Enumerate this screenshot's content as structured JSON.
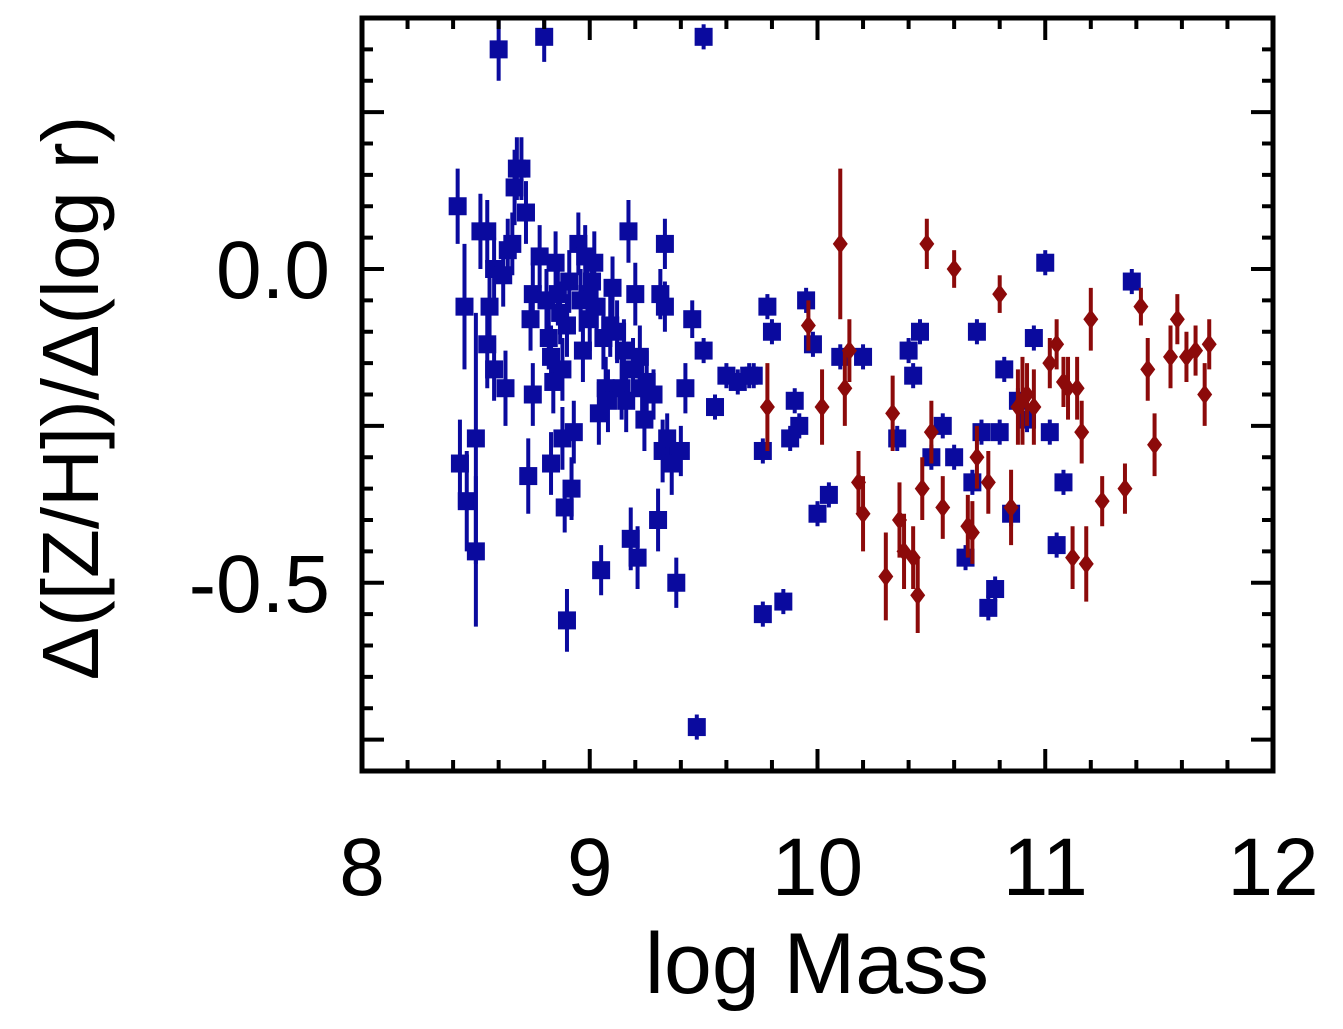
{
  "chart_data": {
    "type": "scatter",
    "title": "",
    "xlabel": "log Mass",
    "ylabel": "Δ([Z/H])/Δ(log r)",
    "xlim": [
      8,
      12
    ],
    "ylim": [
      -0.8,
      0.4
    ],
    "xticks": [
      8,
      9,
      10,
      11,
      12
    ],
    "xtick_labels": [
      "8",
      "9",
      "10",
      "11",
      "12"
    ],
    "yticks": [
      0.0,
      -0.5
    ],
    "ytick_labels": [
      "0.0",
      "-0.5"
    ],
    "grid": false,
    "legend": null,
    "series": [
      {
        "name": "blue squares",
        "color": "#0a0a9e",
        "marker": "square",
        "points": [
          [
            8.42,
            0.1,
            0.06
          ],
          [
            8.45,
            -0.06,
            0.1
          ],
          [
            8.43,
            -0.31,
            0.07
          ],
          [
            8.46,
            -0.37,
            0.08
          ],
          [
            8.5,
            -0.45,
            0.12
          ],
          [
            8.5,
            -0.27,
            0.2
          ],
          [
            8.52,
            0.06,
            0.06
          ],
          [
            8.55,
            0.06,
            0.05
          ],
          [
            8.55,
            -0.12,
            0.07
          ],
          [
            8.56,
            -0.06,
            0.06
          ],
          [
            8.58,
            0.0,
            0.05
          ],
          [
            8.58,
            -0.16,
            0.05
          ],
          [
            8.6,
            0.35,
            0.05
          ],
          [
            8.62,
            -0.01,
            0.05
          ],
          [
            8.63,
            -0.19,
            0.06
          ],
          [
            8.64,
            0.03,
            0.05
          ],
          [
            8.66,
            0.04,
            0.05
          ],
          [
            8.67,
            0.13,
            0.06
          ],
          [
            8.68,
            0.16,
            0.05
          ],
          [
            8.7,
            0.16,
            0.05
          ],
          [
            8.72,
            0.09,
            0.05
          ],
          [
            8.73,
            -0.33,
            0.06
          ],
          [
            8.74,
            -0.08,
            0.05
          ],
          [
            8.75,
            -0.2,
            0.05
          ],
          [
            8.75,
            -0.04,
            0.05
          ],
          [
            8.78,
            0.02,
            0.05
          ],
          [
            8.8,
            0.37,
            0.04
          ],
          [
            8.81,
            -0.05,
            0.05
          ],
          [
            8.82,
            -0.11,
            0.05
          ],
          [
            8.83,
            -0.14,
            0.05
          ],
          [
            8.83,
            -0.31,
            0.05
          ],
          [
            8.84,
            -0.18,
            0.05
          ],
          [
            8.85,
            0.01,
            0.05
          ],
          [
            8.86,
            -0.04,
            0.05
          ],
          [
            8.87,
            -0.07,
            0.05
          ],
          [
            8.88,
            -0.16,
            0.05
          ],
          [
            8.88,
            -0.27,
            0.05
          ],
          [
            8.89,
            -0.38,
            0.04
          ],
          [
            8.9,
            -0.56,
            0.05
          ],
          [
            8.9,
            -0.09,
            0.05
          ],
          [
            8.91,
            -0.02,
            0.05
          ],
          [
            8.92,
            -0.35,
            0.05
          ],
          [
            8.93,
            -0.26,
            0.05
          ],
          [
            8.95,
            0.04,
            0.05
          ],
          [
            8.96,
            -0.05,
            0.05
          ],
          [
            8.97,
            -0.13,
            0.05
          ],
          [
            8.98,
            0.02,
            0.05
          ],
          [
            8.99,
            -0.04,
            0.05
          ],
          [
            9.0,
            -0.08,
            0.05
          ],
          [
            9.01,
            -0.02,
            0.05
          ],
          [
            9.02,
            0.01,
            0.05
          ],
          [
            9.03,
            -0.06,
            0.05
          ],
          [
            9.04,
            -0.23,
            0.05
          ],
          [
            9.05,
            -0.48,
            0.04
          ],
          [
            9.06,
            -0.11,
            0.05
          ],
          [
            9.07,
            -0.19,
            0.05
          ],
          [
            9.08,
            -0.21,
            0.05
          ],
          [
            9.09,
            -0.09,
            0.05
          ],
          [
            9.1,
            -0.03,
            0.05
          ],
          [
            9.12,
            -0.1,
            0.05
          ],
          [
            9.14,
            -0.19,
            0.05
          ],
          [
            9.15,
            -0.13,
            0.05
          ],
          [
            9.16,
            -0.21,
            0.05
          ],
          [
            9.17,
            0.06,
            0.05
          ],
          [
            9.18,
            -0.43,
            0.05
          ],
          [
            9.19,
            -0.16,
            0.05
          ],
          [
            9.2,
            -0.04,
            0.05
          ],
          [
            9.21,
            -0.46,
            0.05
          ],
          [
            9.22,
            -0.14,
            0.05
          ],
          [
            9.23,
            -0.19,
            0.05
          ],
          [
            9.24,
            -0.24,
            0.05
          ],
          [
            9.25,
            -0.18,
            0.05
          ],
          [
            9.28,
            -0.2,
            0.04
          ],
          [
            9.3,
            -0.4,
            0.05
          ],
          [
            9.31,
            -0.04,
            0.04
          ],
          [
            9.32,
            -0.29,
            0.05
          ],
          [
            9.33,
            -0.06,
            0.04
          ],
          [
            9.33,
            0.04,
            0.04
          ],
          [
            9.34,
            -0.27,
            0.04
          ],
          [
            9.36,
            -0.31,
            0.05
          ],
          [
            9.38,
            -0.5,
            0.04
          ],
          [
            9.4,
            -0.29,
            0.04
          ],
          [
            9.42,
            -0.19,
            0.04
          ],
          [
            9.45,
            -0.08,
            0.03
          ],
          [
            9.47,
            -0.73,
            0.02
          ],
          [
            9.5,
            0.37,
            0.02
          ],
          [
            9.5,
            -0.13,
            0.02
          ],
          [
            9.55,
            -0.22,
            0.02
          ],
          [
            9.6,
            -0.17,
            0.02
          ],
          [
            9.65,
            -0.18,
            0.02
          ],
          [
            9.7,
            -0.17,
            0.02
          ],
          [
            9.72,
            -0.17,
            0.02
          ],
          [
            9.76,
            -0.29,
            0.02
          ],
          [
            9.76,
            -0.55,
            0.02
          ],
          [
            9.78,
            -0.06,
            0.02
          ],
          [
            9.8,
            -0.1,
            0.02
          ],
          [
            9.85,
            -0.53,
            0.02
          ],
          [
            9.88,
            -0.27,
            0.02
          ],
          [
            9.9,
            -0.21,
            0.02
          ],
          [
            9.92,
            -0.25,
            0.02
          ],
          [
            9.95,
            -0.05,
            0.02
          ],
          [
            9.98,
            -0.12,
            0.02
          ],
          [
            10.0,
            -0.39,
            0.02
          ],
          [
            10.05,
            -0.36,
            0.02
          ],
          [
            10.1,
            -0.14,
            0.02
          ],
          [
            10.2,
            -0.14,
            0.02
          ],
          [
            10.35,
            -0.27,
            0.02
          ],
          [
            10.4,
            -0.13,
            0.02
          ],
          [
            10.42,
            -0.17,
            0.02
          ],
          [
            10.45,
            -0.1,
            0.02
          ],
          [
            10.5,
            -0.3,
            0.02
          ],
          [
            10.55,
            -0.25,
            0.02
          ],
          [
            10.6,
            -0.3,
            0.02
          ],
          [
            10.65,
            -0.46,
            0.02
          ],
          [
            10.68,
            -0.34,
            0.02
          ],
          [
            10.7,
            -0.1,
            0.02
          ],
          [
            10.72,
            -0.26,
            0.02
          ],
          [
            10.75,
            -0.54,
            0.02
          ],
          [
            10.78,
            -0.51,
            0.02
          ],
          [
            10.8,
            -0.26,
            0.02
          ],
          [
            10.82,
            -0.16,
            0.02
          ],
          [
            10.85,
            -0.39,
            0.02
          ],
          [
            10.88,
            -0.21,
            0.02
          ],
          [
            10.92,
            -0.24,
            0.02
          ],
          [
            10.95,
            -0.11,
            0.02
          ],
          [
            11.0,
            0.01,
            0.02
          ],
          [
            11.02,
            -0.26,
            0.02
          ],
          [
            11.05,
            -0.44,
            0.02
          ],
          [
            11.08,
            -0.34,
            0.02
          ],
          [
            11.38,
            -0.02,
            0.02
          ]
        ]
      },
      {
        "name": "red diamonds",
        "color": "#8c0a0a",
        "marker": "diamond",
        "points": [
          [
            9.78,
            -0.22,
            0.07
          ],
          [
            9.96,
            -0.09,
            0.04
          ],
          [
            10.02,
            -0.22,
            0.06
          ],
          [
            10.1,
            0.04,
            0.12
          ],
          [
            10.12,
            -0.19,
            0.06
          ],
          [
            10.14,
            -0.13,
            0.05
          ],
          [
            10.18,
            -0.34,
            0.05
          ],
          [
            10.2,
            -0.39,
            0.06
          ],
          [
            10.3,
            -0.49,
            0.07
          ],
          [
            10.33,
            -0.23,
            0.06
          ],
          [
            10.36,
            -0.4,
            0.06
          ],
          [
            10.38,
            -0.45,
            0.06
          ],
          [
            10.42,
            -0.46,
            0.05
          ],
          [
            10.44,
            -0.52,
            0.06
          ],
          [
            10.46,
            -0.35,
            0.05
          ],
          [
            10.48,
            0.04,
            0.04
          ],
          [
            10.5,
            -0.26,
            0.05
          ],
          [
            10.55,
            -0.38,
            0.05
          ],
          [
            10.6,
            0.0,
            0.03
          ],
          [
            10.66,
            -0.41,
            0.05
          ],
          [
            10.68,
            -0.42,
            0.05
          ],
          [
            10.7,
            -0.3,
            0.05
          ],
          [
            10.75,
            -0.34,
            0.05
          ],
          [
            10.8,
            -0.04,
            0.03
          ],
          [
            10.85,
            -0.38,
            0.06
          ],
          [
            10.88,
            -0.22,
            0.06
          ],
          [
            10.9,
            -0.21,
            0.07
          ],
          [
            10.92,
            -0.2,
            0.05
          ],
          [
            10.95,
            -0.22,
            0.06
          ],
          [
            11.02,
            -0.15,
            0.04
          ],
          [
            11.05,
            -0.12,
            0.04
          ],
          [
            11.08,
            -0.18,
            0.04
          ],
          [
            11.1,
            -0.19,
            0.05
          ],
          [
            11.12,
            -0.46,
            0.05
          ],
          [
            11.14,
            -0.19,
            0.05
          ],
          [
            11.16,
            -0.26,
            0.05
          ],
          [
            11.18,
            -0.47,
            0.06
          ],
          [
            11.2,
            -0.08,
            0.05
          ],
          [
            11.25,
            -0.37,
            0.04
          ],
          [
            11.35,
            -0.35,
            0.04
          ],
          [
            11.42,
            -0.06,
            0.03
          ],
          [
            11.45,
            -0.16,
            0.05
          ],
          [
            11.48,
            -0.28,
            0.05
          ],
          [
            11.55,
            -0.14,
            0.05
          ],
          [
            11.58,
            -0.08,
            0.04
          ],
          [
            11.62,
            -0.14,
            0.04
          ],
          [
            11.66,
            -0.13,
            0.04
          ],
          [
            11.7,
            -0.2,
            0.05
          ],
          [
            11.72,
            -0.12,
            0.04
          ]
        ]
      }
    ]
  }
}
